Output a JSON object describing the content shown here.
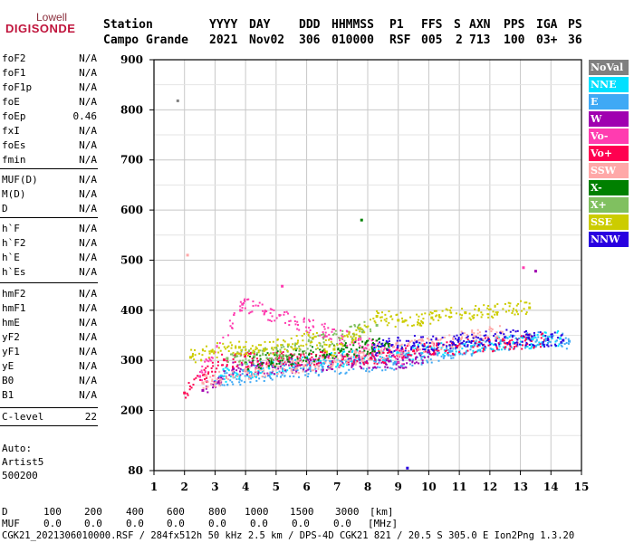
{
  "logo": {
    "top": "Lowell",
    "main": "DIGISONDE"
  },
  "header": {
    "row1": [
      "Station",
      "YYYY",
      "DAY",
      "DDD",
      "HHMMSS",
      "P1",
      "FFS",
      "S",
      "AXN",
      "PPS",
      "IGA",
      "PS"
    ],
    "row2": [
      "Campo Grande",
      "2021",
      "Nov02",
      "306",
      "010000",
      "RSF",
      "005",
      "2",
      "713",
      "100",
      "03+",
      "36"
    ]
  },
  "params": [
    {
      "name": "foF2",
      "value": "N/A"
    },
    {
      "name": "foF1",
      "value": "N/A"
    },
    {
      "name": "foF1p",
      "value": "N/A"
    },
    {
      "name": "foE",
      "value": "N/A"
    },
    {
      "name": "foEp",
      "value": "0.46"
    },
    {
      "name": "fxI",
      "value": "N/A"
    },
    {
      "name": "foEs",
      "value": "N/A"
    },
    {
      "name": "fmin",
      "value": "N/A"
    },
    {
      "name": "MUF(D)",
      "value": "N/A"
    },
    {
      "name": "M(D)",
      "value": "N/A"
    },
    {
      "name": "D",
      "value": "N/A"
    },
    {
      "name": "h`F",
      "value": "N/A"
    },
    {
      "name": "h`F2",
      "value": "N/A"
    },
    {
      "name": "h`E",
      "value": "N/A"
    },
    {
      "name": "h`Es",
      "value": "N/A"
    },
    {
      "name": "hmF2",
      "value": "N/A"
    },
    {
      "name": "hmF1",
      "value": "N/A"
    },
    {
      "name": "hmE",
      "value": "N/A"
    },
    {
      "name": "yF2",
      "value": "N/A"
    },
    {
      "name": "yF1",
      "value": "N/A"
    },
    {
      "name": "yE",
      "value": "N/A"
    },
    {
      "name": "B0",
      "value": "N/A"
    },
    {
      "name": "B1",
      "value": "N/A"
    },
    {
      "name": "C-level",
      "value": "22"
    }
  ],
  "autoscale": {
    "label": "Auto:",
    "artist": "Artist5",
    "version": "500200"
  },
  "footer": {
    "d_label": "D",
    "d_values": [
      "100",
      "200",
      "400",
      "600",
      "800",
      "1000",
      "1500",
      "3000"
    ],
    "d_unit": "[km]",
    "muf_label": "MUF",
    "muf_values": [
      "0.0",
      "0.0",
      "0.0",
      "0.0",
      "0.0",
      "0.0",
      "0.0",
      "0.0"
    ],
    "muf_unit": "[MHz]",
    "info": "CGK21_2021306010000.RSF / 284fx512h 50 kHz 2.5 km / DPS-4D CGK21 821 / 20.5 S 305.0 E Ion2Png 1.3.20"
  },
  "chart_data": {
    "type": "scatter",
    "x_range": [
      1,
      15
    ],
    "y_range": [
      80,
      900
    ],
    "x_ticks": [
      1,
      2,
      3,
      4,
      5,
      6,
      7,
      8,
      9,
      10,
      11,
      12,
      13,
      14,
      15
    ],
    "y_ticks": [
      80,
      200,
      300,
      400,
      500,
      600,
      700,
      800,
      900
    ],
    "grid": true,
    "legend_position": "right",
    "series": [
      {
        "name": "NoVal",
        "color": "#808080",
        "points": [
          [
            1.78,
            818
          ],
          [
            8.2,
            332
          ]
        ]
      },
      {
        "name": "NNE",
        "color": "#00e0ff",
        "points": [
          [
            3.2,
            269
          ],
          [
            4.1,
            279
          ],
          [
            5.6,
            293
          ],
          [
            9.1,
            314
          ],
          [
            11.4,
            328
          ],
          [
            14.3,
            344
          ]
        ]
      },
      {
        "name": "E",
        "color": "#3fa9f5",
        "points": [
          [
            3.0,
            258
          ],
          [
            4.4,
            272
          ],
          [
            6.1,
            283
          ],
          [
            8.9,
            296
          ],
          [
            10.7,
            318
          ],
          [
            13.4,
            342
          ],
          [
            14.6,
            338
          ]
        ]
      },
      {
        "name": "W",
        "color": "#a000b0",
        "points": [
          [
            2.6,
            240
          ],
          [
            3.6,
            283
          ],
          [
            8.6,
            301
          ],
          [
            9.0,
            296
          ],
          [
            10.2,
            313
          ],
          [
            13.5,
            478
          ]
        ]
      },
      {
        "name": "Vo-",
        "color": "#ff3cb0",
        "points": [
          [
            2.5,
            268
          ],
          [
            3.9,
            412
          ],
          [
            5.2,
            448
          ],
          [
            9.2,
            306
          ],
          [
            13.1,
            485
          ]
        ]
      },
      {
        "name": "Vo+",
        "color": "#ff0050",
        "points": [
          [
            2.0,
            235
          ],
          [
            3.3,
            301
          ],
          [
            8.1,
            304
          ],
          [
            9.5,
            319
          ],
          [
            13.8,
            340
          ]
        ]
      },
      {
        "name": "SSW",
        "color": "#ffa8a8",
        "points": [
          [
            2.1,
            510
          ],
          [
            2.6,
            255
          ],
          [
            4.5,
            282
          ],
          [
            5.7,
            289
          ],
          [
            6.6,
            296
          ],
          [
            12.4,
            356
          ]
        ]
      },
      {
        "name": "X-",
        "color": "#008000",
        "points": [
          [
            7.8,
            580
          ],
          [
            4.0,
            295
          ],
          [
            8.7,
            332
          ]
        ]
      },
      {
        "name": "X+",
        "color": "#80c060",
        "points": [
          [
            3.4,
            304
          ],
          [
            5.0,
            312
          ],
          [
            8.3,
            370
          ]
        ]
      },
      {
        "name": "SSE",
        "color": "#cccc00",
        "points": [
          [
            2.2,
            306
          ],
          [
            2.9,
            318
          ],
          [
            3.8,
            326
          ],
          [
            4.6,
            322
          ],
          [
            5.4,
            331
          ],
          [
            6.2,
            344
          ],
          [
            6.9,
            322
          ],
          [
            8.3,
            388
          ],
          [
            9.0,
            380
          ],
          [
            10.1,
            385
          ],
          [
            11.2,
            395
          ],
          [
            13.3,
            405
          ]
        ]
      },
      {
        "name": "NNW",
        "color": "#2800e0",
        "points": [
          [
            8.2,
            321
          ],
          [
            8.8,
            330
          ],
          [
            9.6,
            337
          ],
          [
            10.3,
            332
          ],
          [
            11.0,
            340
          ],
          [
            11.7,
            342
          ],
          [
            12.5,
            346
          ],
          [
            13.2,
            345
          ],
          [
            13.9,
            341
          ],
          [
            14.4,
            340
          ],
          [
            9.3,
            85
          ]
        ]
      }
    ]
  }
}
